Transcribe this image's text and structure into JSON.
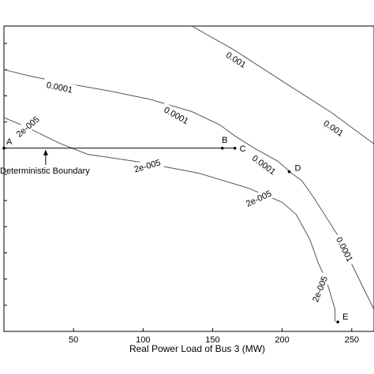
{
  "chart_data": {
    "type": "line",
    "title": "",
    "xlabel": "Real Power Load of Bus 3 (MW)",
    "ylabel": "",
    "xlim": [
      0,
      266
    ],
    "ylim": [
      0,
      1
    ],
    "x_ticks": [
      50,
      100,
      150,
      200,
      250
    ],
    "y_tick_values": [
      0.0857,
      0.1714,
      0.2571,
      0.3429,
      0.4286,
      0.5143,
      0.6,
      0.6857,
      0.7714,
      0.8571,
      0.9429
    ],
    "grid": false,
    "legend": "none",
    "line_color": "#555555",
    "series": [
      {
        "label": "0.001",
        "points": [
          [
            135,
            1.0
          ],
          [
            165,
            0.923
          ],
          [
            200,
            0.82
          ],
          [
            235,
            0.718
          ],
          [
            266,
            0.614
          ]
        ],
        "contour_labels": [
          {
            "x": 167,
            "y": 0.89,
            "angle": 33
          },
          {
            "x": 237,
            "y": 0.666,
            "angle": 33
          }
        ]
      },
      {
        "label": "0.0001",
        "points": [
          [
            0,
            0.857
          ],
          [
            20,
            0.835
          ],
          [
            45,
            0.812
          ],
          [
            75,
            0.788
          ],
          [
            105,
            0.76
          ],
          [
            135,
            0.72
          ],
          [
            155,
            0.677
          ],
          [
            166,
            0.64
          ],
          [
            180,
            0.6
          ],
          [
            197,
            0.557
          ],
          [
            207,
            0.517
          ],
          [
            214,
            0.494
          ],
          [
            222,
            0.443
          ],
          [
            230,
            0.386
          ],
          [
            240,
            0.314
          ],
          [
            250,
            0.22
          ],
          [
            259,
            0.136
          ],
          [
            266,
            0.072
          ]
        ],
        "contour_labels": [
          {
            "x": 40,
            "y": 0.8,
            "angle": 12
          },
          {
            "x": 124,
            "y": 0.708,
            "angle": 29
          },
          {
            "x": 187,
            "y": 0.546,
            "angle": 36
          },
          {
            "x": 245,
            "y": 0.269,
            "angle": 63
          }
        ]
      },
      {
        "label": "2e-005",
        "points": [
          [
            0,
            0.7
          ],
          [
            15,
            0.672
          ],
          [
            40,
            0.616
          ],
          [
            60,
            0.58
          ],
          [
            100,
            0.553
          ],
          [
            140,
            0.518
          ],
          [
            175,
            0.47
          ],
          [
            200,
            0.423
          ],
          [
            210,
            0.383
          ],
          [
            220,
            0.3
          ],
          [
            226,
            0.223
          ],
          [
            232,
            0.163
          ],
          [
            238,
            0.072
          ],
          [
            238,
            0.032
          ]
        ],
        "contour_labels": [
          {
            "x": 17,
            "y": 0.671,
            "angle": -40
          },
          {
            "x": 103,
            "y": 0.543,
            "angle": -16
          },
          {
            "x": 183,
            "y": 0.436,
            "angle": -25
          },
          {
            "x": 227,
            "y": 0.139,
            "angle": -68
          }
        ]
      }
    ],
    "boundary": {
      "label": "Deterministic Boundary",
      "y": 0.6,
      "x_start": 0,
      "x_end": 166
    },
    "points": [
      {
        "label": "A",
        "x": 0,
        "y": 0.6
      },
      {
        "label": "B",
        "x": 157,
        "y": 0.6
      },
      {
        "label": "C",
        "x": 166,
        "y": 0.6
      },
      {
        "label": "D",
        "x": 205,
        "y": 0.523
      },
      {
        "label": "E",
        "x": 240,
        "y": 0.031
      }
    ],
    "annotations": [
      {
        "text": "Deterministic Boundary",
        "arrow_to_x": 30,
        "arrow_to_y": 0.6
      }
    ]
  }
}
